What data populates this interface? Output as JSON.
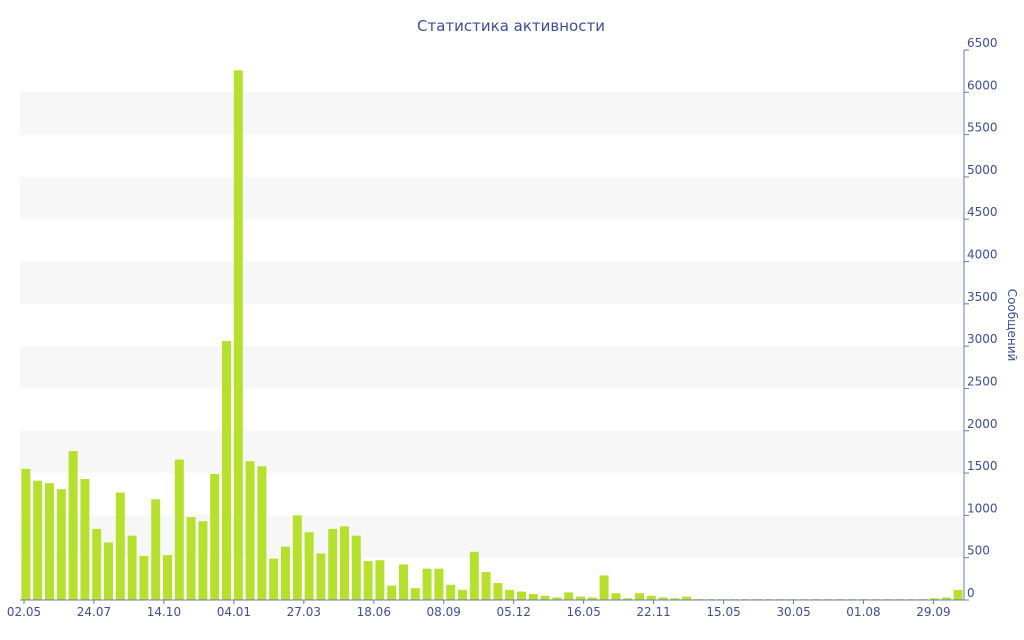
{
  "chart_data": {
    "type": "bar",
    "title": "Статистика активности",
    "xlabel": "",
    "ylabel": "Сообщений",
    "ylim": [
      0,
      6500
    ],
    "y_ticks": [
      0,
      500,
      1000,
      1500,
      2000,
      2500,
      3000,
      3500,
      4000,
      4500,
      5000,
      5500,
      6000,
      6500
    ],
    "y_axis_side": "right",
    "grid": "alternating horizontal bands",
    "bar_color": "#b5e02e",
    "band_color": "#f7f7f7",
    "text_color": "#3f4f8f",
    "x_tick_labels": [
      "02.05",
      "24.07",
      "14.10",
      "04.01",
      "27.03",
      "18.06",
      "08.09",
      "05.12",
      "16.05",
      "22.11",
      "15.05",
      "30.05",
      "01.08",
      "29.09"
    ],
    "values": [
      1550,
      1410,
      1380,
      1310,
      1760,
      1430,
      840,
      680,
      1270,
      760,
      520,
      1190,
      530,
      1660,
      980,
      930,
      1490,
      3060,
      6260,
      1640,
      1580,
      490,
      630,
      1000,
      800,
      550,
      840,
      870,
      760,
      460,
      470,
      170,
      420,
      140,
      370,
      370,
      180,
      120,
      570,
      330,
      200,
      120,
      100,
      70,
      50,
      30,
      90,
      40,
      30,
      290,
      80,
      20,
      80,
      50,
      30,
      20,
      40,
      10,
      10,
      10,
      10,
      10,
      10,
      10,
      10,
      10,
      10,
      10,
      10,
      10,
      10,
      10,
      10,
      10,
      10,
      10,
      10,
      20,
      30,
      120
    ]
  }
}
